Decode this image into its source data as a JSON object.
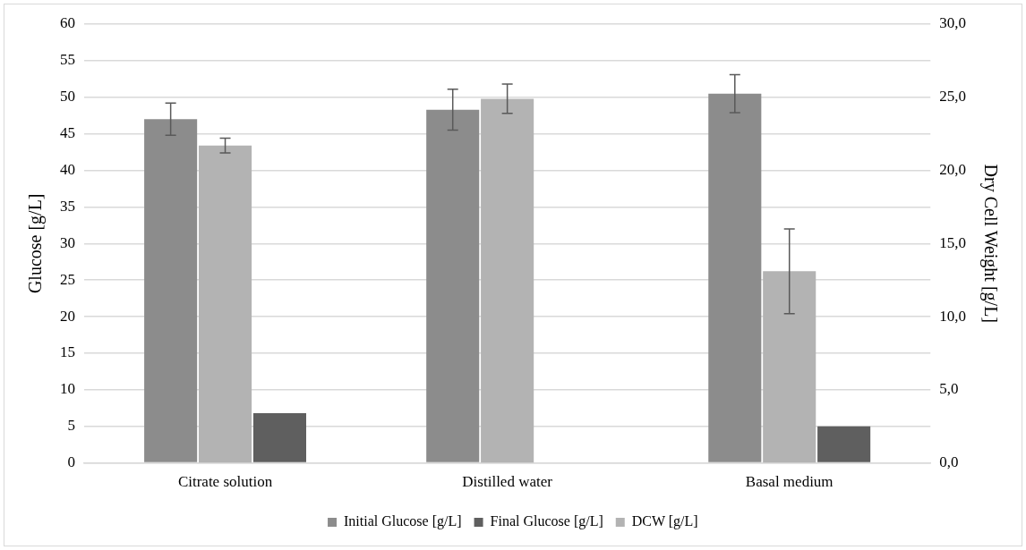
{
  "chart_data": {
    "type": "bar",
    "ylabel": "Glucose [g/L]",
    "y2label": "Dry Cell Weight [g/L]",
    "categories": [
      "Citrate solution",
      "Distilled water",
      "Basal medium"
    ],
    "series": [
      {
        "name": "Initial Glucose [g/L]",
        "color": "#8c8c8c",
        "values": [
          47.0,
          48.3,
          50.5
        ],
        "errors": [
          2.2,
          2.8,
          2.6
        ]
      },
      {
        "name": "Final Glucose [g/L]",
        "color": "#5f5f5f",
        "values": [
          6.8,
          0,
          5.0
        ]
      },
      {
        "name": "DCW [g/L]",
        "color": "#b3b3b3",
        "axis": "y2",
        "values": [
          21.7,
          24.9,
          13.1
        ],
        "errors": [
          0.5,
          1.0,
          2.9
        ]
      }
    ],
    "ylim": [
      0,
      60
    ],
    "yticks": [
      0,
      5,
      10,
      15,
      20,
      25,
      30,
      35,
      40,
      45,
      50,
      55,
      60
    ],
    "y2lim": [
      0,
      30
    ],
    "y2ticks": [
      {
        "value": 0,
        "label": "0,0"
      },
      {
        "value": 5,
        "label": "5,0"
      },
      {
        "value": 10,
        "label": "10,0"
      },
      {
        "value": 15,
        "label": "15,0"
      },
      {
        "value": 20,
        "label": "20,0"
      },
      {
        "value": 25,
        "label": "25,0"
      },
      {
        "value": 30,
        "label": "30,0"
      }
    ],
    "grid": "y",
    "legend": "bottom"
  }
}
